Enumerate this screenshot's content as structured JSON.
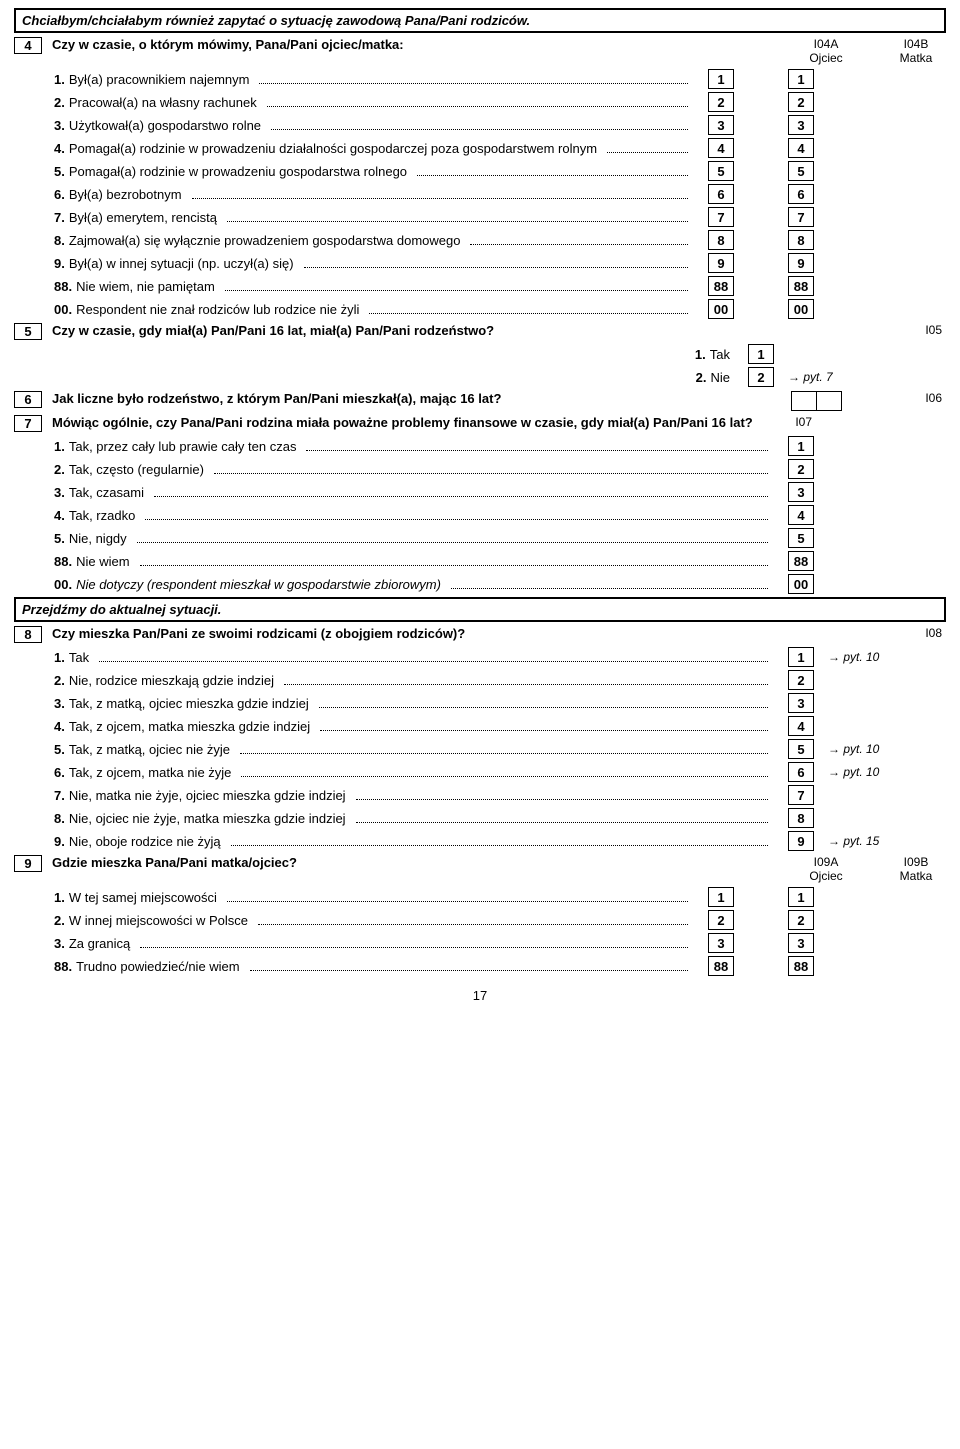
{
  "sectionA": "Chciałbym/chciałabym również zapytać o sytuację zawodową Pana/Pani rodziców.",
  "q4": {
    "num": "4",
    "text": "Czy w czasie, o którym mówimy, Pana/Pani ojciec/matka:",
    "col1head": "I04A\nOjciec",
    "col2head": "I04B\nMatka",
    "items": [
      {
        "pre": "1.",
        "txt": "Był(a) pracownikiem najemnym",
        "a": "1",
        "b": "1"
      },
      {
        "pre": "2.",
        "txt": "Pracował(a) na własny rachunek",
        "a": "2",
        "b": "2"
      },
      {
        "pre": "3.",
        "txt": "Użytkował(a) gospodarstwo rolne",
        "a": "3",
        "b": "3"
      },
      {
        "pre": "4.",
        "txt": "Pomagał(a) rodzinie w prowadzeniu działalności gospodarczej poza gospodarstwem rolnym",
        "a": "4",
        "b": "4",
        "wrap": true
      },
      {
        "pre": "5.",
        "txt": "Pomagał(a) rodzinie w prowadzeniu gospodarstwa rolnego",
        "a": "5",
        "b": "5"
      },
      {
        "pre": "6.",
        "txt": "Był(a) bezrobotnym",
        "a": "6",
        "b": "6"
      },
      {
        "pre": "7.",
        "txt": "Był(a) emerytem, rencistą",
        "a": "7",
        "b": "7"
      },
      {
        "pre": "8.",
        "txt": "Zajmował(a) się wyłącznie prowadzeniem gospodarstwa domowego",
        "a": "8",
        "b": "8"
      },
      {
        "pre": "9.",
        "txt": "Był(a) w innej sytuacji (np. uczył(a) się)",
        "a": "9",
        "b": "9"
      },
      {
        "pre": "88.",
        "txt": "Nie wiem, nie pamiętam",
        "a": "88",
        "b": "88"
      },
      {
        "pre": "00.",
        "txt": "Respondent nie znał rodziców lub rodzice nie żyli",
        "a": "00",
        "b": "00"
      }
    ]
  },
  "q5": {
    "num": "5",
    "text": "Czy w czasie, gdy miał(a) Pan/Pani 16 lat, miał(a) Pan/Pani rodzeństwo?",
    "id": "I05",
    "opt1": {
      "pre": "1.",
      "txt": "Tak",
      "v": "1"
    },
    "opt2": {
      "pre": "2.",
      "txt": "Nie",
      "v": "2",
      "goto": "→ pyt. 7"
    }
  },
  "q6": {
    "num": "6",
    "text": "Jak liczne było rodzeństwo, z którym Pan/Pani mieszkał(a), mając 16 lat?",
    "id": "I06"
  },
  "q7": {
    "num": "7",
    "text": "Mówiąc ogólnie, czy Pana/Pani rodzina miała poważne problemy finansowe w czasie, gdy miał(a) Pan/Pani 16 lat?",
    "id": "I07",
    "items": [
      {
        "pre": "1.",
        "txt": "Tak, przez cały lub prawie cały ten czas",
        "v": "1"
      },
      {
        "pre": "2.",
        "txt": "Tak, często (regularnie)",
        "v": "2"
      },
      {
        "pre": "3.",
        "txt": "Tak, czasami",
        "v": "3"
      },
      {
        "pre": "4.",
        "txt": "Tak, rzadko",
        "v": "4"
      },
      {
        "pre": "5.",
        "txt": "Nie, nigdy",
        "v": "5"
      },
      {
        "pre": "88.",
        "txt": "Nie wiem",
        "v": "88"
      },
      {
        "pre": "00.",
        "txt": "Nie dotyczy (respondent mieszkał w gospodarstwie zbiorowym)",
        "v": "00",
        "ital": true
      }
    ]
  },
  "sectionB": "Przejdźmy do aktualnej sytuacji.",
  "q8": {
    "num": "8",
    "text": "Czy mieszka Pan/Pani ze swoimi rodzicami (z obojgiem rodziców)?",
    "id": "I08",
    "items": [
      {
        "pre": "1.",
        "txt": "Tak",
        "v": "1",
        "goto": "→ pyt. 10"
      },
      {
        "pre": "2.",
        "txt": "Nie, rodzice mieszkają gdzie indziej",
        "v": "2"
      },
      {
        "pre": "3.",
        "txt": "Tak, z matką, ojciec mieszka gdzie indziej",
        "v": "3"
      },
      {
        "pre": "4.",
        "txt": "Tak, z ojcem, matka mieszka gdzie indziej",
        "v": "4"
      },
      {
        "pre": "5.",
        "txt": "Tak, z matką, ojciec nie żyje",
        "v": "5",
        "goto": "→ pyt. 10"
      },
      {
        "pre": "6.",
        "txt": "Tak, z ojcem, matka nie żyje",
        "v": "6",
        "goto": "→ pyt. 10"
      },
      {
        "pre": "7.",
        "txt": "Nie, matka nie żyje, ojciec mieszka gdzie indziej",
        "v": "7"
      },
      {
        "pre": "8.",
        "txt": "Nie, ojciec nie żyje, matka mieszka gdzie indziej",
        "v": "8"
      },
      {
        "pre": "9.",
        "txt": "Nie, oboje rodzice nie żyją",
        "v": "9",
        "goto": "→ pyt. 15"
      }
    ]
  },
  "q9": {
    "num": "9",
    "text": "Gdzie mieszka Pana/Pani matka/ojciec?",
    "col1head": "I09A\nOjciec",
    "col2head": "I09B\nMatka",
    "items": [
      {
        "pre": "1.",
        "txt": "W tej samej miejscowości",
        "a": "1",
        "b": "1"
      },
      {
        "pre": "2.",
        "txt": "W innej miejscowości w Polsce",
        "a": "2",
        "b": "2"
      },
      {
        "pre": "3.",
        "txt": "Za granicą",
        "a": "3",
        "b": "3"
      },
      {
        "pre": "88.",
        "txt": "Trudno powiedzieć/nie wiem",
        "a": "88",
        "b": "88"
      }
    ]
  },
  "pagenum": "17"
}
